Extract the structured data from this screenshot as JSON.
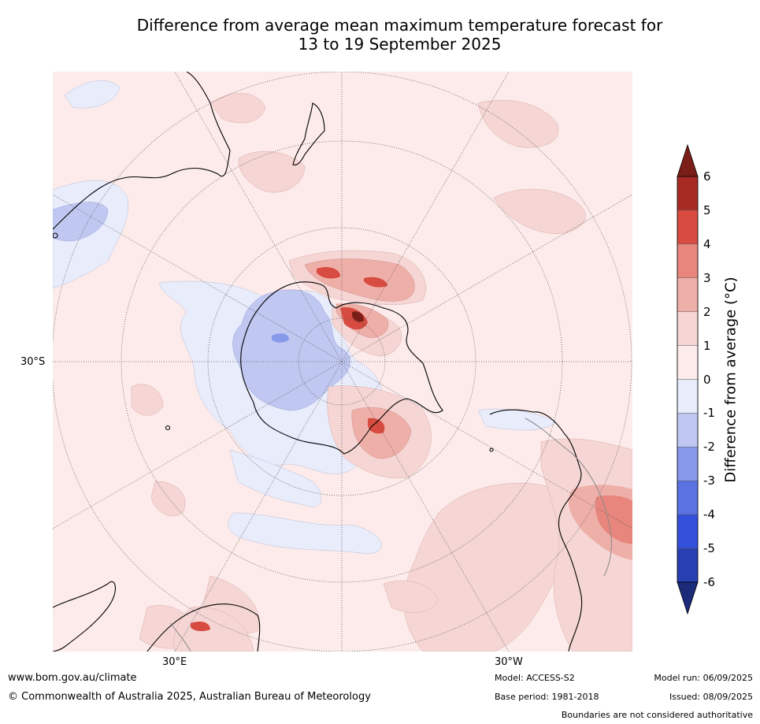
{
  "title_line1": "Difference from average mean maximum temperature forecast for",
  "title_line2": "13 to 19 September 2025",
  "labels": {
    "lat_30s": "30°S",
    "lon_30e": "30°E",
    "lon_30w": "30°W"
  },
  "colorbar": {
    "label": "Difference from average (°C)",
    "ticks": [
      "6",
      "5",
      "4",
      "3",
      "2",
      "1",
      "0",
      "-1",
      "-2",
      "-3",
      "-4",
      "-5",
      "-6"
    ],
    "colors": {
      "above6": "#7b1e17",
      "5_6": "#a72b23",
      "4_5": "#d84b40",
      "3_4": "#e8867d",
      "2_3": "#efafa9",
      "1_2": "#f5d6d4",
      "0_1": "#fcebea",
      "m1_0": "#e8ecfb",
      "m2_m1": "#c0c8f2",
      "m3_m2": "#8899ec",
      "m4_m3": "#5a72e2",
      "m5_m4": "#3350db",
      "m6_m5": "#283fb2",
      "below_m6": "#1c2a7a"
    }
  },
  "footer": {
    "website": "www.bom.gov.au/climate",
    "copyright": "© Commonwealth of Australia 2025, Australian Bureau of Meteorology",
    "model": "Model: ACCESS-S2",
    "base_period": "Base period: 1981-2018",
    "model_run": "Model run: 06/09/2025",
    "issued": "Issued: 08/09/2025",
    "disclaimer": "Boundaries are not considered authoritative"
  }
}
